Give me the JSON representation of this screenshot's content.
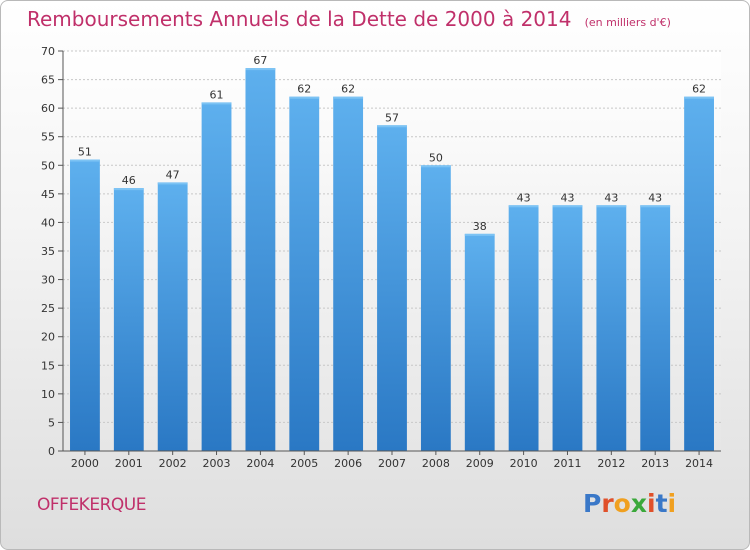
{
  "header": {
    "title": "Remboursements Annuels de la Dette de 2000 à 2014",
    "subtitle": "(en milliers d'€)"
  },
  "footer": {
    "commune": "OFFEKERQUE",
    "brand_letters": [
      {
        "char": "P",
        "color": "#3a78c8"
      },
      {
        "char": "r",
        "color": "#e0502a"
      },
      {
        "char": "o",
        "color": "#f0a020"
      },
      {
        "char": "x",
        "color": "#3aa83a"
      },
      {
        "char": "i",
        "color": "#e0502a"
      },
      {
        "char": "t",
        "color": "#3a78c8"
      },
      {
        "char": "i",
        "color": "#f0a020"
      }
    ]
  },
  "colors": {
    "title": "#c0306a",
    "bar": "#3e8fd6",
    "axis": "#555555"
  },
  "chart_data": {
    "type": "bar",
    "categories": [
      "2000",
      "2001",
      "2002",
      "2003",
      "2004",
      "2005",
      "2006",
      "2007",
      "2008",
      "2009",
      "2010",
      "2011",
      "2012",
      "2013",
      "2014"
    ],
    "values": [
      51,
      46,
      47,
      61,
      67,
      62,
      62,
      57,
      50,
      38,
      43,
      43,
      43,
      43,
      62
    ],
    "title": "Remboursements Annuels de la Dette de 2000 à 2014",
    "subtitle": "(en milliers d'€)",
    "xlabel": "",
    "ylabel": "",
    "ylim": [
      0,
      70
    ],
    "yticks": [
      0,
      5,
      10,
      15,
      20,
      25,
      30,
      35,
      40,
      45,
      50,
      55,
      60,
      65,
      70
    ],
    "data_labels": true,
    "grid": true
  }
}
